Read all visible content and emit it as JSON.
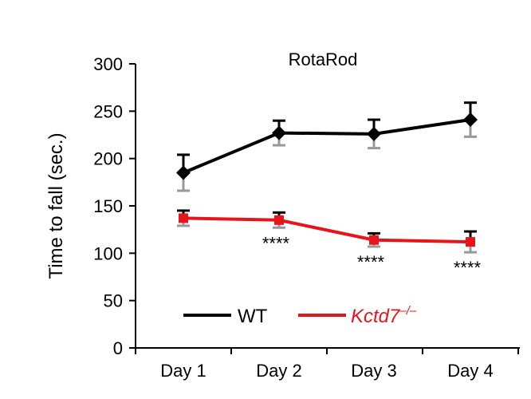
{
  "chart_data": {
    "type": "line",
    "title": "RotaRod",
    "xlabel": "",
    "ylabel": "Time to fall (sec.)",
    "ylim": [
      0,
      300
    ],
    "yticks": [
      0,
      50,
      100,
      150,
      200,
      250,
      300
    ],
    "categories": [
      "Day 1",
      "Day 2",
      "Day 3",
      "Day 4"
    ],
    "series": [
      {
        "name": "WT",
        "color": "#000000",
        "marker": "diamond",
        "values": [
          185,
          227,
          226,
          241
        ],
        "errors": [
          19,
          13,
          15,
          18
        ]
      },
      {
        "name": "Kctd7",
        "name_superscript": "–/–",
        "color": "#e8141c",
        "marker": "square",
        "values": [
          137,
          135,
          114,
          112
        ],
        "errors": [
          8,
          8,
          7,
          11
        ]
      }
    ],
    "annotations": [
      {
        "category": "Day 2",
        "text": "****"
      },
      {
        "category": "Day 3",
        "text": "****"
      },
      {
        "category": "Day 4",
        "text": "****"
      }
    ],
    "legend": "bottom-inside"
  }
}
